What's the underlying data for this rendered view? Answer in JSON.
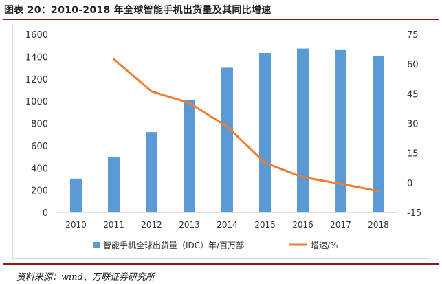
{
  "figure": {
    "title": "图表 20：2010-2018 年全球智能手机出货量及其同比增速",
    "source": "资料来源：wind、万联证券研究所"
  },
  "chart_data": {
    "type": "bar",
    "categories": [
      "2010",
      "2011",
      "2012",
      "2013",
      "2014",
      "2015",
      "2016",
      "2017",
      "2018"
    ],
    "series": [
      {
        "name": "智能手机全球出货量（IDC）年/百万部",
        "type": "bar",
        "axis": "left",
        "values": [
          304,
          494,
          722,
          1013,
          1301,
          1433,
          1473,
          1465,
          1403
        ]
      },
      {
        "name": "增速/%",
        "type": "line",
        "axis": "right",
        "values": [
          null,
          62.5,
          46.2,
          40.3,
          28.4,
          10.1,
          2.8,
          -0.5,
          -4.2
        ]
      }
    ],
    "left_axis": {
      "min": 0,
      "max": 1600,
      "step": 200,
      "ticks": [
        "0",
        "200",
        "400",
        "600",
        "800",
        "1000",
        "1200",
        "1400",
        "1600"
      ]
    },
    "right_axis": {
      "min": -15,
      "max": 75,
      "step": 15,
      "ticks": [
        "-15",
        "0",
        "15",
        "30",
        "45",
        "60",
        "75"
      ]
    },
    "colors": {
      "bar": "#5b9bd5",
      "line": "#ed7d31",
      "axis": "#bfbfbf"
    },
    "grid": false,
    "legend_position": "bottom"
  }
}
